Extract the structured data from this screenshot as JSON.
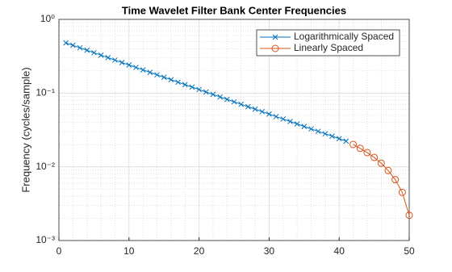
{
  "chart_data": {
    "type": "line",
    "title": "Time Wavelet Filter Bank Center Frequencies",
    "y_label": "Frequency (cycles/sample)",
    "xlim": [
      0,
      50
    ],
    "xticks": [
      0,
      10,
      20,
      30,
      40,
      50
    ],
    "ylim": [
      0.001,
      1
    ],
    "yticks": [
      {
        "value": 0.001,
        "label": "10⁻³"
      },
      {
        "value": 0.01,
        "label": "10⁻²"
      },
      {
        "value": 0.1,
        "label": "10⁻¹"
      },
      {
        "value": 1,
        "label": "10⁰"
      }
    ],
    "y_scale": "log",
    "grid": true,
    "minor_grid": true,
    "legend_position": "northeast",
    "series": [
      {
        "name": "Logarithmically Spaced",
        "color": "#0072BD",
        "marker": "x",
        "x": [
          1,
          2,
          3,
          4,
          5,
          6,
          7,
          8,
          9,
          10,
          11,
          12,
          13,
          14,
          15,
          16,
          17,
          18,
          19,
          20,
          21,
          22,
          23,
          24,
          25,
          26,
          27,
          28,
          29,
          30,
          31,
          32,
          33,
          34,
          35,
          36,
          37,
          38,
          39,
          40,
          41
        ],
        "values": [
          0.48,
          0.4445,
          0.4117,
          0.3813,
          0.3531,
          0.327,
          0.3029,
          0.2805,
          0.2598,
          0.2406,
          0.2228,
          0.2064,
          0.1911,
          0.177,
          0.1639,
          0.1518,
          0.1406,
          0.1302,
          0.1206,
          0.1117,
          0.1034,
          0.0958,
          0.0887,
          0.0822,
          0.0761,
          0.0705,
          0.0653,
          0.0605,
          0.056,
          0.0519,
          0.048,
          0.0445,
          0.0412,
          0.0382,
          0.0353,
          0.0327,
          0.0303,
          0.0281,
          0.026,
          0.0241,
          0.0223
        ]
      },
      {
        "name": "Linearly Spaced",
        "color": "#D95319",
        "marker": "o",
        "x": [
          42,
          43,
          44,
          45,
          46,
          47,
          48,
          49,
          50
        ],
        "values": [
          0.0201,
          0.0178,
          0.0156,
          0.0134,
          0.0112,
          0.0089,
          0.0067,
          0.0045,
          0.0022
        ]
      }
    ]
  }
}
